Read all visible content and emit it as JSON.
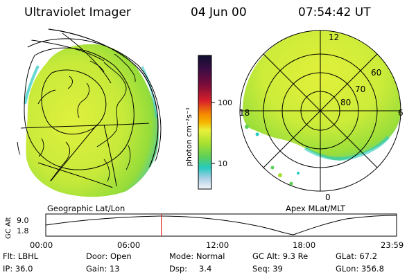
{
  "header": {
    "title": "Ultraviolet Imager",
    "date": "04 Jun 00",
    "time": "07:54:42 UT"
  },
  "colorbar": {
    "unit_label": "photon cm⁻²s⁻¹",
    "ticks": [
      "100",
      "10"
    ],
    "colors": [
      "#101030",
      "#6a0a3a",
      "#e0202a",
      "#f5a000",
      "#e8f03a",
      "#88d830",
      "#26c9c0",
      "#d6dde8",
      "#ffffff"
    ]
  },
  "panels": {
    "left_label": "Geographic Lat/Lon",
    "right_label": "Apex MLat/MLT",
    "mlt_labels": [
      "12",
      "6",
      "0",
      "18"
    ],
    "mlat_labels": [
      "60",
      "70",
      "80"
    ]
  },
  "altitude_plot": {
    "axis_title": "GC Alt",
    "y_ticks": [
      "9.0",
      "1.8"
    ],
    "x_ticks": [
      "00:00",
      "06:00",
      "12:00",
      "18:00",
      "23:59"
    ],
    "marker_time": "07:54",
    "marker_color": "#e02020"
  },
  "info": {
    "flt": "Flt: LBHL",
    "ip": "IP: 36.0",
    "door": "Door: Open",
    "gain": "Gain: 13",
    "mode": "Mode: Normal",
    "dsp_label": "Dsp:",
    "dsp_value": "3.4",
    "gc_alt": "GC Alt: 9.3 Re",
    "seq": "Seq: 39",
    "glat": "GLat:  67.2",
    "glon": "GLon: 356.8"
  }
}
